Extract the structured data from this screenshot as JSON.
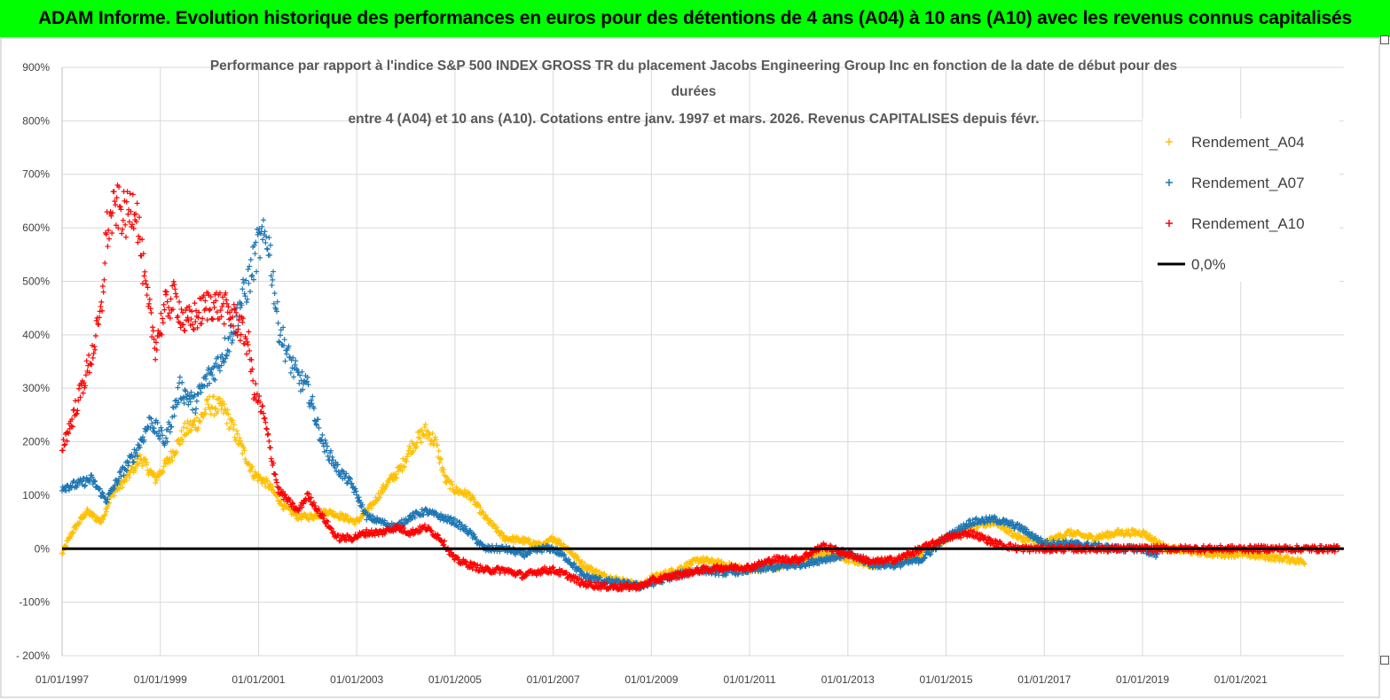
{
  "banner": {
    "title": "ADAM Informe. Evolution historique des performances en euros pour des détentions de 4 ans (A04) à 10 ans (A10) avec les revenus connus capitalisés"
  },
  "colors": {
    "banner_bg": "#00ff00",
    "A04": "#ffc000",
    "A07": "#1f77b4",
    "A10": "#ff0000",
    "zero": "#000000",
    "grid": "#d9d9d9"
  },
  "chart_data": {
    "type": "scatter",
    "title_lines": [
      "Performance par rapport à l'indice S&P 500 INDEX GROSS TR  du placement Jacobs Engineering Group Inc en fonction de la date de début pour des",
      "durées",
      "entre 4 (A04) et 10 ans (A10). Cotations entre janv. 1997 et mars. 2026. Revenus CAPITALISES depuis févr."
    ],
    "ylim": [
      -200,
      900
    ],
    "yticks": [
      -200,
      -100,
      0,
      100,
      200,
      300,
      400,
      500,
      600,
      700,
      800,
      900
    ],
    "ytick_labels": [
      "- 200%",
      "-100%",
      "0%",
      "100%",
      "200%",
      "300%",
      "400%",
      "500%",
      "600%",
      "700%",
      "800%",
      "900%"
    ],
    "xlim": [
      1997.0,
      2023.1
    ],
    "xticks": [
      1997,
      1999,
      2001,
      2003,
      2005,
      2007,
      2009,
      2011,
      2013,
      2015,
      2017,
      2019,
      2021
    ],
    "xtick_labels": [
      "01/01/1997",
      "01/01/1999",
      "01/01/2001",
      "01/01/2003",
      "01/01/2005",
      "01/01/2007",
      "01/01/2009",
      "01/01/2011",
      "01/01/2013",
      "01/01/2015",
      "01/01/2017",
      "01/01/2019",
      "01/01/2021"
    ],
    "grid": true,
    "legend_position": "top-right",
    "series": [
      {
        "name": "Rendement_A04",
        "marker": "plus",
        "color": "#ffc000",
        "x": [
          1997.0,
          1997.2,
          1997.5,
          1997.8,
          1998.0,
          1998.3,
          1998.6,
          1998.9,
          1999.2,
          1999.5,
          1999.8,
          2000.0,
          2000.3,
          2000.6,
          2000.9,
          2001.2,
          2001.5,
          2001.8,
          2002.1,
          2002.4,
          2002.7,
          2003.0,
          2003.3,
          2003.6,
          2003.9,
          2004.1,
          2004.4,
          2004.6,
          2004.8,
          2005.0,
          2005.3,
          2005.6,
          2006.0,
          2006.4,
          2006.8,
          2007.0,
          2007.3,
          2007.6,
          2008.0,
          2008.4,
          2008.8,
          2009.0,
          2009.5,
          2010.0,
          2010.5,
          2011.0,
          2011.5,
          2012.0,
          2012.5,
          2013.0,
          2013.5,
          2014.0,
          2014.5,
          2015.0,
          2015.5,
          2016.0,
          2016.5,
          2017.0,
          2017.5,
          2018.0,
          2018.5,
          2019.0,
          2019.5,
          2020.0,
          2020.5,
          2021.0,
          2021.5,
          2022.0,
          2022.3
        ],
        "y": [
          -10,
          30,
          70,
          50,
          100,
          130,
          170,
          130,
          170,
          220,
          240,
          270,
          260,
          200,
          140,
          120,
          80,
          60,
          60,
          70,
          60,
          50,
          80,
          120,
          150,
          190,
          220,
          200,
          130,
          110,
          100,
          60,
          20,
          15,
          5,
          20,
          0,
          -30,
          -50,
          -60,
          -70,
          -55,
          -40,
          -20,
          -30,
          -40,
          -35,
          -25,
          -10,
          -20,
          -30,
          -25,
          -10,
          20,
          40,
          50,
          20,
          10,
          30,
          20,
          30,
          30,
          0,
          -5,
          -10,
          -10,
          -15,
          -20,
          -25
        ]
      },
      {
        "name": "Rendement_A07",
        "marker": "plus",
        "color": "#1f77b4",
        "x": [
          1997.0,
          1997.3,
          1997.6,
          1997.9,
          1998.2,
          1998.5,
          1998.8,
          1999.1,
          1999.4,
          1999.7,
          1999.9,
          2000.2,
          2000.4,
          2000.6,
          2000.8,
          2001.0,
          2001.2,
          2001.4,
          2001.6,
          2001.8,
          2002.0,
          2002.3,
          2002.6,
          2002.9,
          2003.2,
          2003.5,
          2003.8,
          2004.1,
          2004.4,
          2004.7,
          2005.0,
          2005.3,
          2005.6,
          2006.0,
          2006.4,
          2006.8,
          2007.0,
          2007.3,
          2007.6,
          2008.0,
          2008.4,
          2008.8,
          2009.0,
          2009.5,
          2010.0,
          2010.5,
          2011.0,
          2011.5,
          2012.0,
          2012.5,
          2013.0,
          2013.5,
          2014.0,
          2014.5,
          2015.0,
          2015.5,
          2016.0,
          2016.5,
          2017.0,
          2017.5,
          2018.0,
          2018.5,
          2019.0,
          2019.3
        ],
        "y": [
          115,
          120,
          130,
          90,
          140,
          180,
          240,
          200,
          300,
          270,
          310,
          350,
          390,
          450,
          500,
          570,
          580,
          420,
          360,
          320,
          300,
          200,
          150,
          120,
          60,
          50,
          40,
          60,
          70,
          60,
          50,
          30,
          0,
          0,
          -10,
          0,
          0,
          -20,
          -50,
          -60,
          -65,
          -70,
          -65,
          -50,
          -40,
          -45,
          -40,
          -35,
          -30,
          -20,
          -10,
          -30,
          -30,
          -20,
          20,
          50,
          55,
          40,
          10,
          10,
          5,
          0,
          0,
          -15
        ]
      },
      {
        "name": "Rendement_A10",
        "marker": "plus",
        "color": "#ff0000",
        "x": [
          1997.0,
          1997.2,
          1997.4,
          1997.6,
          1997.8,
          1997.9,
          1998.1,
          1998.3,
          1998.5,
          1998.7,
          1998.9,
          1999.1,
          1999.3,
          1999.5,
          1999.8,
          2000.0,
          2000.3,
          2000.6,
          2000.8,
          2000.9,
          2001.1,
          2001.4,
          2001.6,
          2001.8,
          2002.0,
          2002.3,
          2002.6,
          2002.9,
          2003.2,
          2003.5,
          2003.8,
          2004.1,
          2004.4,
          2004.7,
          2005.0,
          2005.3,
          2005.6,
          2006.0,
          2006.4,
          2006.8,
          2007.0,
          2007.3,
          2007.6,
          2008.0,
          2008.4,
          2008.8,
          2009.0,
          2009.5,
          2010.0,
          2010.5,
          2011.0,
          2011.5,
          2012.0,
          2012.5,
          2013.0,
          2013.5,
          2014.0,
          2014.5,
          2015.0,
          2015.5,
          2016.0,
          2016.5,
          2017.0,
          2018.0,
          2019.0,
          2020.0,
          2021.0,
          2022.0,
          2023.0
        ],
        "y": [
          190,
          240,
          300,
          360,
          440,
          590,
          640,
          620,
          650,
          480,
          380,
          450,
          470,
          420,
          440,
          460,
          450,
          420,
          380,
          300,
          250,
          110,
          90,
          70,
          100,
          60,
          20,
          20,
          30,
          30,
          40,
          30,
          40,
          20,
          -20,
          -30,
          -40,
          -40,
          -50,
          -40,
          -40,
          -50,
          -65,
          -70,
          -72,
          -70,
          -60,
          -50,
          -40,
          -35,
          -35,
          -20,
          -20,
          5,
          -10,
          -25,
          -20,
          0,
          20,
          30,
          10,
          0,
          0,
          0,
          0,
          0,
          0,
          0,
          0
        ]
      }
    ],
    "reference_line": {
      "name": "0,0%",
      "y": 0
    }
  }
}
